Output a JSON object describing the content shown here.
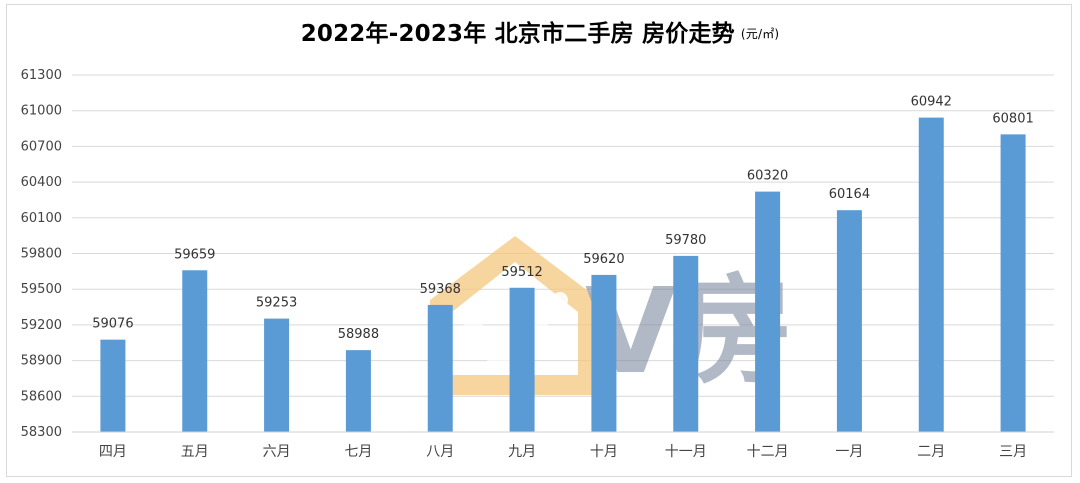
{
  "chart_data": {
    "type": "bar",
    "title": "2022年-2023年 北京市二手房 房价走势",
    "unit": "(元/㎡)",
    "categories": [
      "四月",
      "五月",
      "六月",
      "七月",
      "八月",
      "九月",
      "十月",
      "十一月",
      "十二月",
      "一月",
      "二月",
      "三月"
    ],
    "values": [
      59076,
      59659,
      59253,
      58988,
      59368,
      59512,
      59620,
      59780,
      60320,
      60164,
      60942,
      60801
    ],
    "yticks": [
      58300,
      58600,
      58900,
      59200,
      59500,
      59800,
      60100,
      60400,
      60700,
      61000,
      61300
    ],
    "ylim": [
      58300,
      61300
    ],
    "grid": true,
    "bar_color": "#5b9bd5"
  },
  "watermark": {
    "text": "V房",
    "colors": [
      "#f5c77e",
      "#7f8aa0"
    ]
  }
}
